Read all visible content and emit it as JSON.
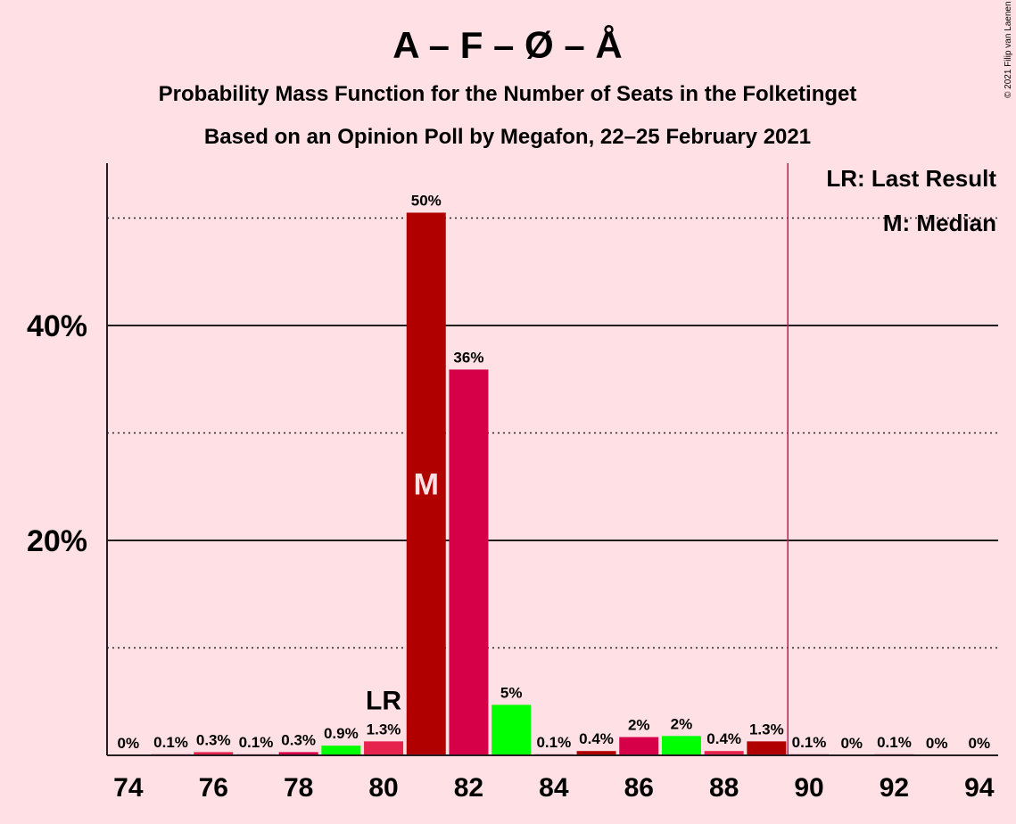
{
  "chart_data": {
    "type": "bar",
    "title": "A – F – Ø – Å",
    "subtitle": "Probability Mass Function for the Number of Seats in the Folketinget",
    "subtitle2": "Based on an Opinion Poll by Megafon, 22–25 February 2021",
    "copyright": "© 2021 Filip van Laenen",
    "xlabel": "",
    "ylabel": "",
    "x_ticks": [
      "74",
      "76",
      "78",
      "80",
      "82",
      "84",
      "86",
      "88",
      "90",
      "92",
      "94"
    ],
    "y_ticks": [
      "20%",
      "40%"
    ],
    "ylim": [
      0,
      55
    ],
    "xlim": [
      73.5,
      94.5
    ],
    "majority_line": 89.5,
    "bars": [
      {
        "seats": 74,
        "value": 0,
        "label": "0%",
        "color": "#C11B55"
      },
      {
        "seats": 75,
        "value": 0.1,
        "label": "0.1%",
        "color": "#C11B55"
      },
      {
        "seats": 76,
        "value": 0.3,
        "label": "0.3%",
        "color": "#E5234C"
      },
      {
        "seats": 77,
        "value": 0.1,
        "label": "0.1%",
        "color": "#C11B55"
      },
      {
        "seats": 78,
        "value": 0.3,
        "label": "0.3%",
        "color": "#D50048"
      },
      {
        "seats": 79,
        "value": 0.9,
        "label": "0.9%",
        "color": "#00FF00"
      },
      {
        "seats": 80,
        "value": 1.3,
        "label": "1.3%",
        "color": "#E5234C"
      },
      {
        "seats": 81,
        "value": 50.5,
        "label": "50%",
        "color": "#B10000"
      },
      {
        "seats": 82,
        "value": 35.9,
        "label": "36%",
        "color": "#D50048"
      },
      {
        "seats": 83,
        "value": 4.7,
        "label": "5%",
        "color": "#00FF00"
      },
      {
        "seats": 84,
        "value": 0.1,
        "label": "0.1%",
        "color": "#C11B55"
      },
      {
        "seats": 85,
        "value": 0.4,
        "label": "0.4%",
        "color": "#B10000"
      },
      {
        "seats": 86,
        "value": 1.7,
        "label": "2%",
        "color": "#D50048"
      },
      {
        "seats": 87,
        "value": 1.8,
        "label": "2%",
        "color": "#00FF00"
      },
      {
        "seats": 88,
        "value": 0.4,
        "label": "0.4%",
        "color": "#E5234C"
      },
      {
        "seats": 89,
        "value": 1.3,
        "label": "1.3%",
        "color": "#B10000"
      },
      {
        "seats": 90,
        "value": 0.1,
        "label": "0.1%",
        "color": "#C11B55"
      },
      {
        "seats": 91,
        "value": 0,
        "label": "0%",
        "color": "#C11B55"
      },
      {
        "seats": 92,
        "value": 0.1,
        "label": "0.1%",
        "color": "#C11B55"
      },
      {
        "seats": 93,
        "value": 0,
        "label": "0%",
        "color": "#C11B55"
      },
      {
        "seats": 94,
        "value": 0,
        "label": "0%",
        "color": "#C11B55"
      }
    ],
    "last_result": {
      "seats": 80,
      "label": "LR"
    },
    "median": {
      "seats": 81,
      "label": "M"
    },
    "legend": {
      "lr": "LR: Last Result",
      "m": "M: Median",
      "placement": "top-right"
    },
    "colors": {
      "background": "#FFE1E5",
      "axis": "#231F20",
      "majority": "#C11B55",
      "text": "#231F20"
    }
  }
}
